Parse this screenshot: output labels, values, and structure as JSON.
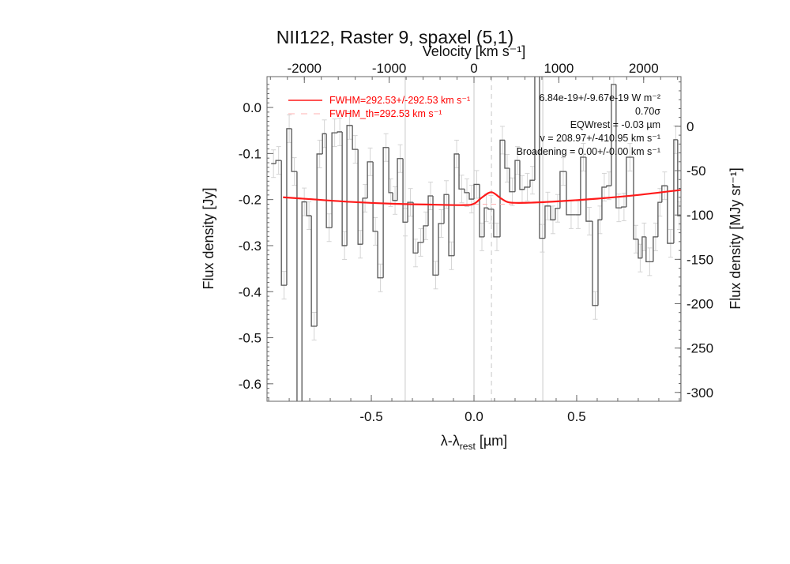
{
  "colors": {
    "data": "#555555",
    "error": "#d4d4d4",
    "fit": "#ff1a1a",
    "baseline": "#ffb0b0",
    "grid": "#c8c8c8",
    "text": "#111111"
  },
  "chart_data": {
    "type": "line",
    "title": "NII122, Raster 9, spaxel (5,1)",
    "xlabel": "λ-λrest [µm]",
    "xlabel_main": "λ-λ",
    "xlabel_sub": "rest",
    "xlabel_unit": " [µm]",
    "ylabel": "Flux density [Jy]",
    "y2label": "Flux density [MJy sr⁻¹]",
    "x2label": "Velocity [km s⁻¹]",
    "xlim": [
      -1.008,
      1.008
    ],
    "ylim": [
      -0.638,
      0.067
    ],
    "y2lim": [
      -310,
      56
    ],
    "x2lim": [
      -2440,
      2440
    ],
    "xticks": [
      "-0.5",
      "0.0",
      "0.5"
    ],
    "xtick_values": [
      -0.5,
      0.0,
      0.5
    ],
    "yticks": [
      "0.0",
      "-0.1",
      "-0.2",
      "-0.3",
      "-0.4",
      "-0.5",
      "-0.6"
    ],
    "ytick_values": [
      0.0,
      -0.1,
      -0.2,
      -0.3,
      -0.4,
      -0.5,
      -0.6
    ],
    "y2ticks": [
      "0",
      "-50",
      "-100",
      "-150",
      "-200",
      "-250",
      "-300"
    ],
    "y2tick_values": [
      0,
      -50,
      -100,
      -150,
      -200,
      -250,
      -300
    ],
    "x2ticks": [
      "-2000",
      "-1000",
      "0",
      "1000",
      "2000"
    ],
    "x2tick_values": [
      -2000,
      -1000,
      0,
      1000,
      2000
    ],
    "vlines": [
      -0.335,
      0.0,
      0.335
    ],
    "line_center": 0.085,
    "spectrum": {
      "bin_starts": [
        -0.988,
        -0.965,
        -0.938,
        -0.912,
        -0.888,
        -0.862,
        -0.838,
        -0.815,
        -0.792,
        -0.765,
        -0.738,
        -0.719,
        -0.692,
        -0.665,
        -0.642,
        -0.619,
        -0.592,
        -0.565,
        -0.542,
        -0.519,
        -0.492,
        -0.469,
        -0.442,
        -0.415,
        -0.396,
        -0.373,
        -0.346,
        -0.323,
        -0.296,
        -0.273,
        -0.246,
        -0.223,
        -0.2,
        -0.173,
        -0.146,
        -0.123,
        -0.096,
        -0.073,
        -0.046,
        -0.023,
        0.0,
        0.027,
        0.05,
        0.069,
        0.096,
        0.127,
        0.15,
        0.173,
        0.2,
        0.223,
        0.246,
        0.273,
        0.296,
        0.319,
        0.346,
        0.373,
        0.396,
        0.419,
        0.45,
        0.496,
        0.519,
        0.546,
        0.577,
        0.604,
        0.623,
        0.646,
        0.669,
        0.692,
        0.719,
        0.742,
        0.777,
        0.8,
        0.819,
        0.838,
        0.873,
        0.896,
        0.915,
        0.942,
        0.973,
        0.992
      ],
      "bin_end": 1.008,
      "flux": [
        -0.122,
        -0.115,
        -0.386,
        -0.046,
        -0.139,
        -0.7,
        -0.205,
        -0.235,
        -0.475,
        -0.101,
        -0.057,
        -0.261,
        -0.055,
        -0.053,
        -0.3,
        -0.039,
        -0.091,
        -0.297,
        -0.197,
        -0.118,
        -0.269,
        -0.37,
        -0.087,
        -0.185,
        -0.202,
        -0.111,
        -0.249,
        -0.206,
        -0.316,
        -0.293,
        -0.257,
        -0.192,
        -0.364,
        -0.252,
        -0.189,
        -0.322,
        -0.101,
        -0.177,
        -0.185,
        -0.199,
        -0.167,
        -0.281,
        -0.218,
        -0.221,
        -0.281,
        -0.071,
        -0.132,
        -0.183,
        -0.115,
        -0.178,
        -0.173,
        -0.158,
        0.1,
        -0.284,
        -0.214,
        -0.244,
        -0.219,
        -0.139,
        -0.233,
        -0.233,
        -0.108,
        -0.247,
        -0.43,
        -0.244,
        -0.173,
        -0.17,
        0.05,
        -0.218,
        -0.216,
        -0.108,
        -0.286,
        -0.327,
        -0.281,
        -0.335,
        -0.281,
        -0.206,
        -0.17,
        -0.295,
        -0.07,
        -0.235
      ],
      "error": 0.03
    },
    "fit": {
      "x": [
        -0.93,
        -0.8,
        -0.6,
        -0.4,
        -0.2,
        -0.05,
        0.0,
        0.04,
        0.085,
        0.13,
        0.17,
        0.25,
        0.4,
        0.6,
        0.8,
        1.008
      ],
      "y": [
        -0.195,
        -0.199,
        -0.205,
        -0.209,
        -0.211,
        -0.212,
        -0.209,
        -0.195,
        -0.184,
        -0.197,
        -0.206,
        -0.207,
        -0.204,
        -0.198,
        -0.19,
        -0.179
      ]
    },
    "legend": [
      {
        "label": "FWHM=292.53+/-292.53 km s⁻¹",
        "style": "solid"
      },
      {
        "label": "FWHM_th=292.53 km s⁻¹",
        "style": "dashed"
      }
    ],
    "annotations": [
      "6.84e-19+/-9.67e-19 W m⁻²",
      "0.70σ",
      "EQWrest = -0.03 µm",
      "v = 208.97+/-410.95 km s⁻¹",
      "Broadening = 0.00+/-0.00 km s⁻¹"
    ],
    "grid": false
  }
}
